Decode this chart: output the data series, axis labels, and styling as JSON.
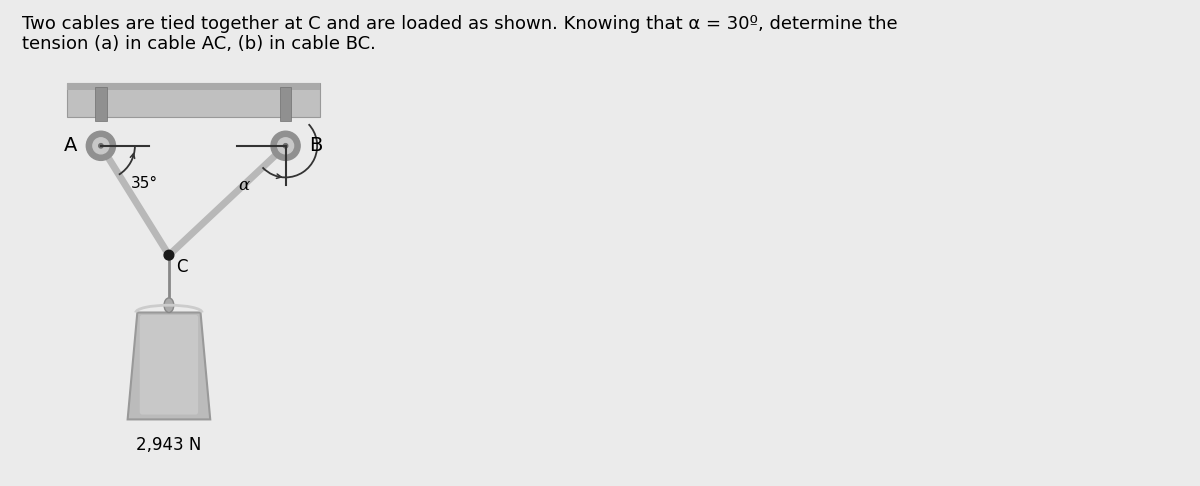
{
  "fig_bg": "#ebebeb",
  "title_text": "Two cables are tied together at C and are loaded as shown. Knowing that α = 30º, determine the\ntension (a) in cable AC, (b) in cable BC.",
  "title_fontsize": 13.0,
  "ceiling_color": "#c0c0c0",
  "ceiling_edge_color": "#999999",
  "cable_color": "#b8b8b8",
  "cable_lw": 5,
  "pulley_color": "#808080",
  "pulley_inner_color": "#d0d0d0",
  "bracket_color": "#808080",
  "angle_line_color": "#333333",
  "dot_color": "#1a1a1a",
  "rope_color": "#888888",
  "hook_color": "#999999",
  "weight_color": "#bbbbbb",
  "weight_edge_color": "#999999",
  "weight_label": "2,943 N",
  "label_A": "A",
  "label_B": "B",
  "label_C": "C",
  "angle_AC_label": "35°",
  "angle_BC_label": "α",
  "A": [
    0.115,
    0.7
  ],
  "B": [
    0.495,
    0.7
  ],
  "C": [
    0.255,
    0.475
  ]
}
